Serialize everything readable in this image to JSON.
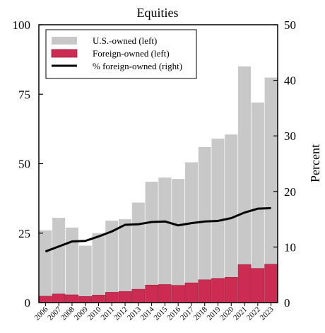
{
  "chart_data": {
    "type": "bar",
    "title": "Equities",
    "ylabel_left": "",
    "ylabel_right": "Percent",
    "ylim_left": [
      0,
      100
    ],
    "ylim_right": [
      0,
      50
    ],
    "yticks_left": [
      "0",
      "25",
      "50",
      "75",
      "100"
    ],
    "yticks_right": [
      "0",
      "10",
      "20",
      "30",
      "40",
      "50"
    ],
    "categories": [
      "2006",
      "2007",
      "2008",
      "2009",
      "2010",
      "2011",
      "2012",
      "2013",
      "2014",
      "2015",
      "2016",
      "2017",
      "2018",
      "2019",
      "2020",
      "2021",
      "2022",
      "2023"
    ],
    "series": [
      {
        "name": "U.S.-owned (left)",
        "kind": "bar",
        "axis": "left",
        "color": "#c8c8c8",
        "values": [
          26,
          30.5,
          27,
          20.5,
          25,
          29.5,
          30,
          36,
          43.5,
          45,
          44.5,
          50.5,
          56,
          59,
          60.5,
          85,
          72,
          81
        ]
      },
      {
        "name": "Foreign-owned (left)",
        "kind": "bar",
        "axis": "left",
        "color": "#cc2b52",
        "values": [
          2.3,
          3.1,
          2.8,
          2.2,
          2.7,
          3.7,
          4.0,
          4.8,
          6.3,
          6.5,
          6.2,
          7.1,
          8.2,
          8.7,
          9.1,
          13.7,
          12.3,
          13.8
        ]
      },
      {
        "name": "% foreign-owned (right)",
        "kind": "line",
        "axis": "right",
        "color": "#000000",
        "values": [
          9.2,
          10.1,
          11.0,
          11.1,
          11.9,
          12.8,
          14.0,
          14.1,
          14.5,
          14.6,
          13.9,
          14.3,
          14.6,
          14.7,
          15.2,
          16.2,
          16.9,
          17.0
        ]
      }
    ],
    "legend_position": "top-left",
    "grid": false
  }
}
